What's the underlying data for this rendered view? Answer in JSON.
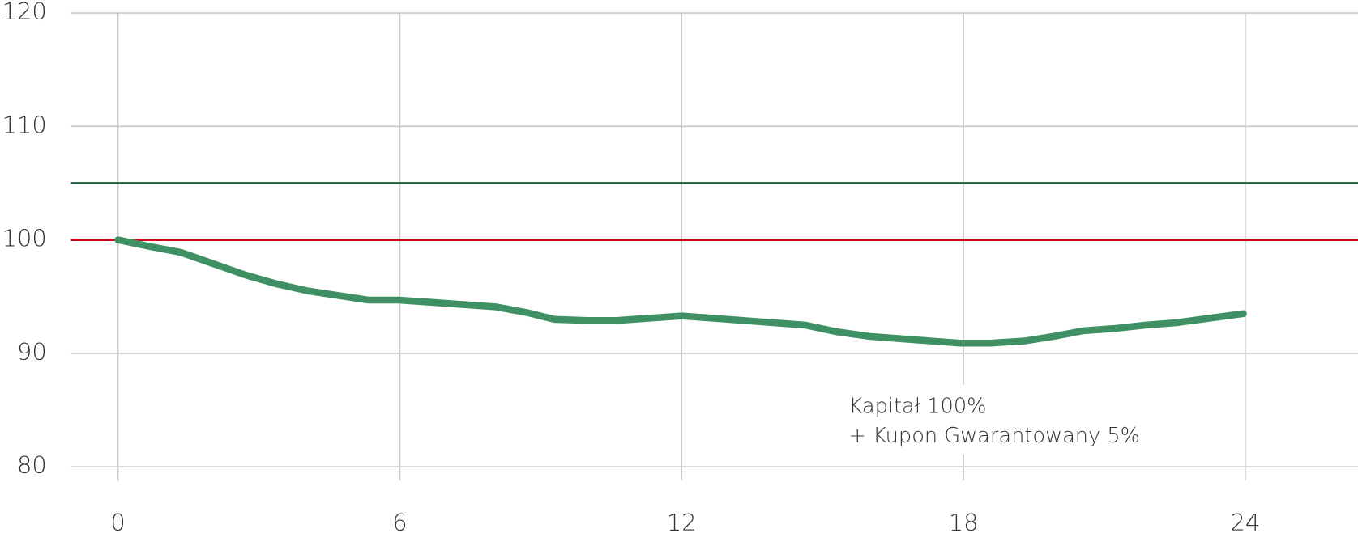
{
  "chart_data": {
    "type": "line",
    "x": [
      0,
      0.7,
      1.34,
      2.72,
      3.4,
      4.05,
      4.69,
      5.33,
      5.98,
      8.04,
      8.7,
      9.29,
      9.99,
      10.63,
      12.0,
      14.62,
      15.31,
      16.0,
      16.64,
      17.93,
      18.57,
      19.31,
      19.92,
      20.56,
      21.24,
      21.89,
      22.53,
      23.96
    ],
    "series": [
      {
        "color": "#3f9163",
        "values": [
          100,
          99.4,
          98.9,
          96.9,
          96.1,
          95.5,
          95.1,
          94.7,
          94.7,
          94.1,
          93.6,
          93.0,
          92.9,
          92.9,
          93.3,
          92.5,
          91.9,
          91.5,
          91.3,
          90.9,
          90.9,
          91.1,
          91.5,
          92.0,
          92.2,
          92.5,
          92.7,
          93.5
        ]
      }
    ],
    "reference_lines": [
      {
        "value": 105,
        "color": "#1e5c3a"
      },
      {
        "value": 100,
        "color": "#d0021b"
      }
    ],
    "annotations": [
      "Kapitał 100%",
      "+ Kupon Gwarantowany 5%"
    ],
    "xlim": [
      -1,
      26.4
    ],
    "ylim": [
      80,
      120
    ],
    "xticks": [
      0,
      6,
      12,
      18,
      24
    ],
    "yticks": [
      80,
      90,
      100,
      110,
      120
    ],
    "grid": true
  }
}
